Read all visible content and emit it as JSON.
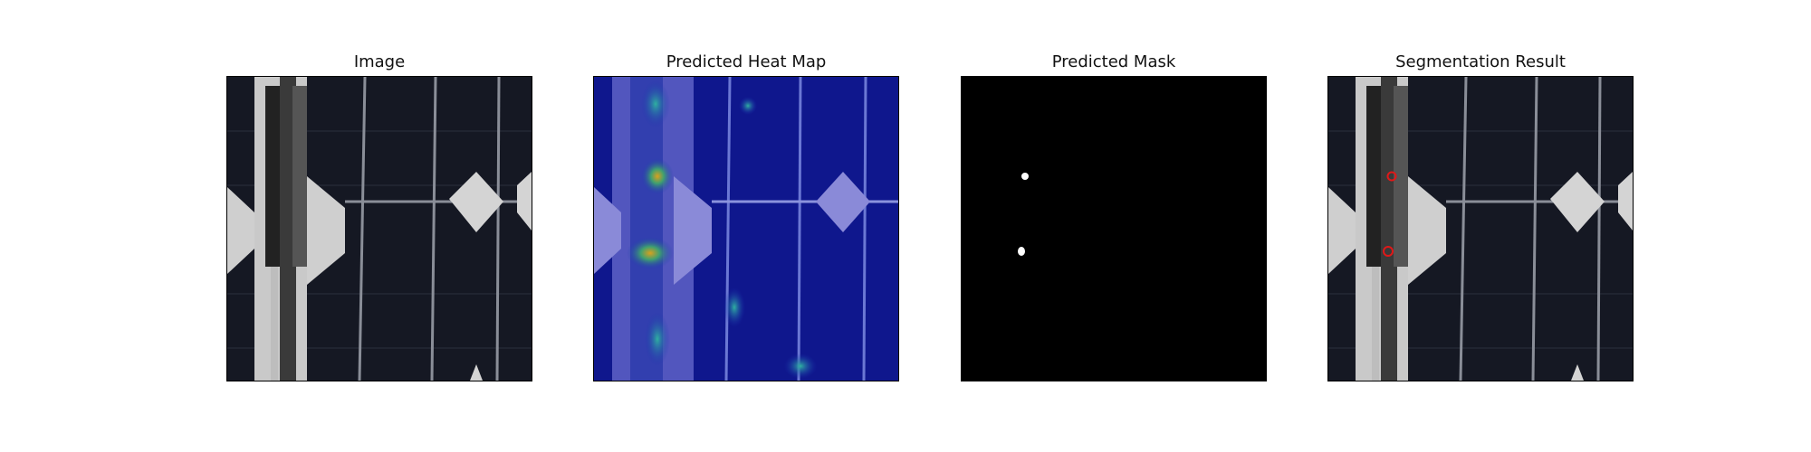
{
  "figure": {
    "panels": [
      {
        "title": "Image",
        "kind": "photo"
      },
      {
        "title": "Predicted Heat Map",
        "kind": "heatmap"
      },
      {
        "title": "Predicted Mask",
        "kind": "mask"
      },
      {
        "title": "Segmentation Result",
        "kind": "overlay"
      }
    ]
  },
  "colors": {
    "cell_dark": "#151823",
    "pad": "#cfcfcf",
    "heat_base": "#10199a",
    "mask_bg": "#000000",
    "mask_fg": "#ffffff",
    "outline": "#e01818"
  }
}
